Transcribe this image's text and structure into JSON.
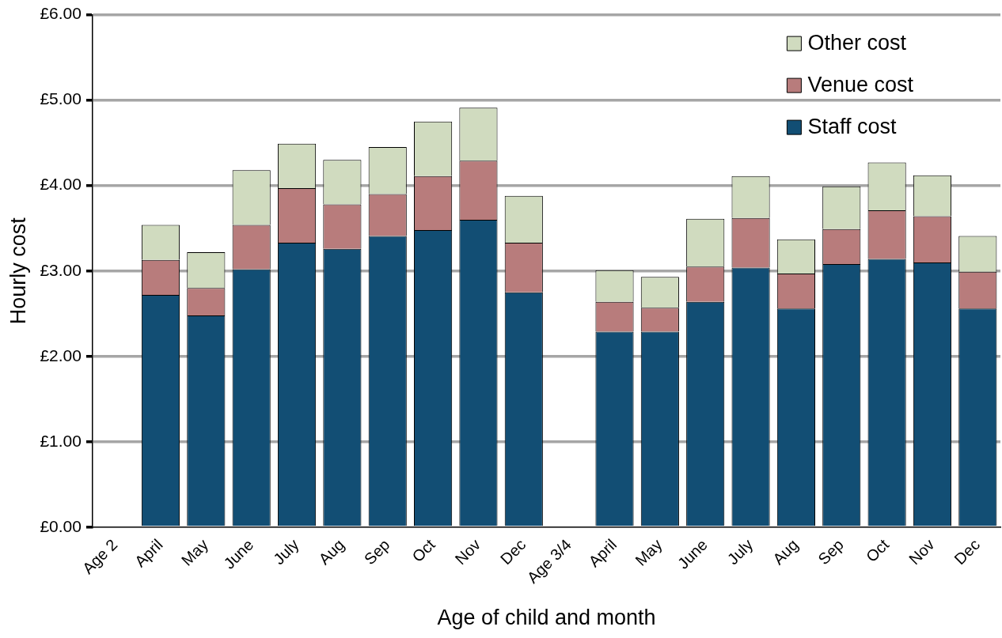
{
  "chart_data": {
    "type": "bar",
    "xlabel": "Age of child and month",
    "ylabel": "Hourly cost",
    "categories": [
      "Age 2",
      "April",
      "May",
      "June",
      "July",
      "Aug",
      "Sep",
      "Oct",
      "Nov",
      "Dec",
      "Age 3/4",
      "April",
      "May",
      "June",
      "July",
      "Aug",
      "Sep",
      "Oct",
      "Nov",
      "Dec"
    ],
    "stacked": true,
    "series": [
      {
        "name": "Staff cost",
        "color": "#124e74",
        "values": [
          null,
          2.72,
          2.48,
          3.02,
          3.33,
          3.26,
          3.41,
          3.48,
          3.6,
          2.75,
          null,
          2.29,
          2.29,
          2.64,
          3.04,
          2.56,
          3.08,
          3.14,
          3.1,
          2.56
        ]
      },
      {
        "name": "Venue cost",
        "color": "#b87c7c",
        "values": [
          null,
          0.41,
          0.32,
          0.52,
          0.64,
          0.52,
          0.49,
          0.63,
          0.69,
          0.58,
          null,
          0.35,
          0.28,
          0.41,
          0.58,
          0.41,
          0.41,
          0.57,
          0.54,
          0.43
        ]
      },
      {
        "name": "Other cost",
        "color": "#d0dbbf",
        "values": [
          null,
          0.41,
          0.42,
          0.64,
          0.52,
          0.52,
          0.55,
          0.64,
          0.62,
          0.55,
          null,
          0.37,
          0.36,
          0.56,
          0.49,
          0.4,
          0.5,
          0.56,
          0.48,
          0.42
        ]
      }
    ],
    "ylim": [
      0,
      6
    ],
    "yticks": [
      {
        "value": 0,
        "label": "£0.00"
      },
      {
        "value": 1,
        "label": "£1.00"
      },
      {
        "value": 2,
        "label": "£2.00"
      },
      {
        "value": 3,
        "label": "£3.00"
      },
      {
        "value": 4,
        "label": "£4.00"
      },
      {
        "value": 5,
        "label": "£5.00"
      },
      {
        "value": 6,
        "label": "£6.00"
      }
    ],
    "grid": "y",
    "legend": "top right"
  }
}
